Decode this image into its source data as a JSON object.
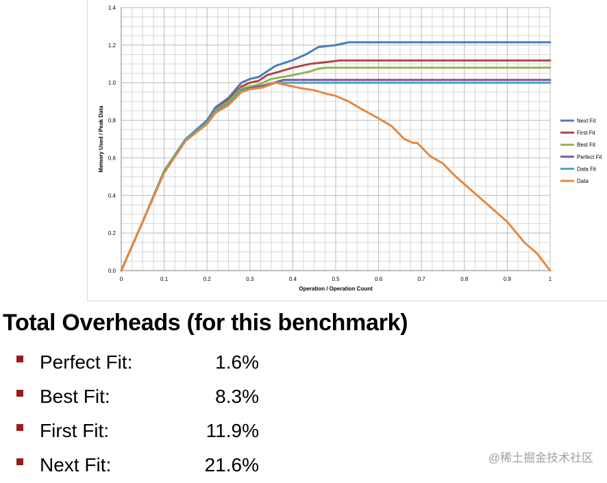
{
  "chart_data": {
    "type": "line",
    "title": "",
    "xlabel": "Operation / Operation Count",
    "ylabel": "Memory Used / Peak Data",
    "xlim": [
      0,
      1
    ],
    "ylim": [
      0,
      1.4
    ],
    "xticks": [
      "0",
      "0.1",
      "0.2",
      "0.3",
      "0.4",
      "0.5",
      "0.6",
      "0.7",
      "0.8",
      "0.9",
      "1"
    ],
    "yticks": [
      "0.0",
      "0.2",
      "0.4",
      "0.6",
      "0.8",
      "1.0",
      "1.2",
      "1.4"
    ],
    "grid": true,
    "legend_position": "right",
    "series": [
      {
        "name": "Next Fit",
        "color": "#4a7bbf",
        "points": [
          [
            0,
            0
          ],
          [
            0.05,
            0.26
          ],
          [
            0.1,
            0.53
          ],
          [
            0.15,
            0.7
          ],
          [
            0.2,
            0.8
          ],
          [
            0.22,
            0.87
          ],
          [
            0.25,
            0.92
          ],
          [
            0.28,
            1.0
          ],
          [
            0.3,
            1.02
          ],
          [
            0.32,
            1.03
          ],
          [
            0.34,
            1.06
          ],
          [
            0.36,
            1.09
          ],
          [
            0.4,
            1.12
          ],
          [
            0.43,
            1.15
          ],
          [
            0.46,
            1.19
          ],
          [
            0.5,
            1.2
          ],
          [
            0.53,
            1.215
          ],
          [
            1.0,
            1.215
          ]
        ]
      },
      {
        "name": "First Fit",
        "color": "#b54442",
        "points": [
          [
            0,
            0
          ],
          [
            0.05,
            0.26
          ],
          [
            0.1,
            0.53
          ],
          [
            0.15,
            0.7
          ],
          [
            0.2,
            0.79
          ],
          [
            0.22,
            0.86
          ],
          [
            0.25,
            0.91
          ],
          [
            0.28,
            0.98
          ],
          [
            0.3,
            1.0
          ],
          [
            0.32,
            1.01
          ],
          [
            0.34,
            1.04
          ],
          [
            0.37,
            1.06
          ],
          [
            0.4,
            1.08
          ],
          [
            0.44,
            1.1
          ],
          [
            0.48,
            1.11
          ],
          [
            0.51,
            1.118
          ],
          [
            1.0,
            1.118
          ]
        ]
      },
      {
        "name": "Best Fit",
        "color": "#8fb64a",
        "points": [
          [
            0,
            0
          ],
          [
            0.05,
            0.26
          ],
          [
            0.1,
            0.53
          ],
          [
            0.15,
            0.7
          ],
          [
            0.2,
            0.79
          ],
          [
            0.22,
            0.855
          ],
          [
            0.25,
            0.9
          ],
          [
            0.28,
            0.97
          ],
          [
            0.3,
            0.98
          ],
          [
            0.32,
            0.99
          ],
          [
            0.35,
            1.02
          ],
          [
            0.4,
            1.04
          ],
          [
            0.44,
            1.06
          ],
          [
            0.46,
            1.075
          ],
          [
            0.48,
            1.08
          ],
          [
            1.0,
            1.08
          ]
        ]
      },
      {
        "name": "Perfect Fit",
        "color": "#7a5aa0",
        "points": [
          [
            0,
            0
          ],
          [
            0.05,
            0.26
          ],
          [
            0.1,
            0.53
          ],
          [
            0.15,
            0.7
          ],
          [
            0.2,
            0.79
          ],
          [
            0.22,
            0.85
          ],
          [
            0.25,
            0.89
          ],
          [
            0.28,
            0.96
          ],
          [
            0.3,
            0.97
          ],
          [
            0.32,
            0.98
          ],
          [
            0.35,
            0.995
          ],
          [
            0.37,
            1.01
          ],
          [
            0.38,
            1.015
          ],
          [
            1.0,
            1.015
          ]
        ]
      },
      {
        "name": "Data Fit",
        "color": "#46a5b8",
        "points": [
          [
            0,
            0
          ],
          [
            0.05,
            0.26
          ],
          [
            0.1,
            0.53
          ],
          [
            0.15,
            0.7
          ],
          [
            0.2,
            0.79
          ],
          [
            0.22,
            0.85
          ],
          [
            0.25,
            0.89
          ],
          [
            0.28,
            0.96
          ],
          [
            0.3,
            0.965
          ],
          [
            0.33,
            0.975
          ],
          [
            0.36,
            1.0
          ],
          [
            1.0,
            1.0
          ]
        ]
      },
      {
        "name": "Data",
        "color": "#e8873a",
        "points": [
          [
            0,
            0
          ],
          [
            0.05,
            0.26
          ],
          [
            0.1,
            0.52
          ],
          [
            0.15,
            0.69
          ],
          [
            0.2,
            0.78
          ],
          [
            0.22,
            0.84
          ],
          [
            0.25,
            0.88
          ],
          [
            0.28,
            0.95
          ],
          [
            0.3,
            0.965
          ],
          [
            0.33,
            0.975
          ],
          [
            0.36,
            1.0
          ],
          [
            0.38,
            0.99
          ],
          [
            0.42,
            0.97
          ],
          [
            0.45,
            0.96
          ],
          [
            0.48,
            0.94
          ],
          [
            0.5,
            0.93
          ],
          [
            0.53,
            0.9
          ],
          [
            0.56,
            0.86
          ],
          [
            0.6,
            0.81
          ],
          [
            0.63,
            0.77
          ],
          [
            0.66,
            0.7
          ],
          [
            0.68,
            0.68
          ],
          [
            0.69,
            0.68
          ],
          [
            0.72,
            0.61
          ],
          [
            0.75,
            0.57
          ],
          [
            0.78,
            0.5
          ],
          [
            0.82,
            0.42
          ],
          [
            0.85,
            0.36
          ],
          [
            0.9,
            0.26
          ],
          [
            0.94,
            0.15
          ],
          [
            0.97,
            0.09
          ],
          [
            1.0,
            0.0
          ]
        ]
      }
    ]
  },
  "overheads": {
    "title": "Total Overheads (for this benchmark)",
    "items": [
      {
        "label": "Perfect Fit:",
        "value": "1.6%"
      },
      {
        "label": "Best Fit:",
        "value": "8.3%"
      },
      {
        "label": "First Fit:",
        "value": "11.9%"
      },
      {
        "label": "Next Fit:",
        "value": "21.6%"
      }
    ]
  },
  "watermark": "@稀土掘金技术社区"
}
